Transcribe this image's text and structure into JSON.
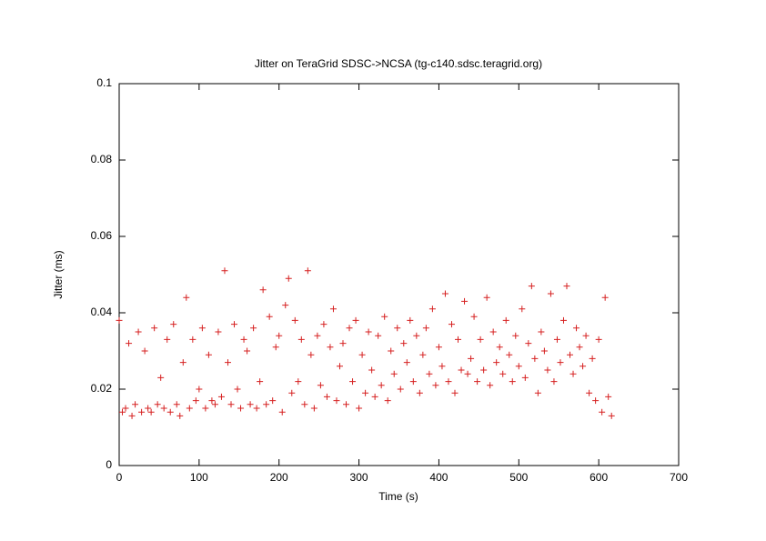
{
  "chart_data": {
    "type": "scatter",
    "title": "Jitter on TeraGrid SDSC->NCSA (tg-c140.sdsc.teragrid.org)",
    "x_label": "Time (s)",
    "y_label": "Jitter (ms)",
    "color": "#d62020",
    "xlim": [
      0,
      700
    ],
    "xticks": [
      0,
      100,
      200,
      300,
      400,
      500,
      600,
      700
    ],
    "ylim": [
      0,
      0.1
    ],
    "yticks": [
      0,
      0.02,
      0.04,
      0.06,
      0.08,
      0.1
    ],
    "x": [
      0,
      4,
      8,
      12,
      16,
      20,
      24,
      28,
      32,
      36,
      40,
      44,
      48,
      52,
      56,
      60,
      64,
      68,
      72,
      76,
      80,
      84,
      88,
      92,
      96,
      100,
      104,
      108,
      112,
      116,
      120,
      124,
      128,
      132,
      136,
      140,
      144,
      148,
      152,
      156,
      160,
      164,
      168,
      172,
      176,
      180,
      184,
      188,
      192,
      196,
      200,
      204,
      208,
      212,
      216,
      220,
      224,
      228,
      232,
      236,
      240,
      244,
      248,
      252,
      256,
      260,
      264,
      268,
      272,
      276,
      280,
      284,
      288,
      292,
      296,
      300,
      304,
      308,
      312,
      316,
      320,
      324,
      328,
      332,
      336,
      340,
      344,
      348,
      352,
      356,
      360,
      364,
      368,
      372,
      376,
      380,
      384,
      388,
      392,
      396,
      400,
      404,
      408,
      412,
      416,
      420,
      424,
      428,
      432,
      436,
      440,
      444,
      448,
      452,
      456,
      460,
      464,
      468,
      472,
      476,
      480,
      484,
      488,
      492,
      496,
      500,
      504,
      508,
      512,
      516,
      520,
      524,
      528,
      532,
      536,
      540,
      544,
      548,
      552,
      556,
      560,
      564,
      568,
      572,
      576,
      580,
      584,
      588,
      592,
      596,
      600,
      604,
      608,
      612,
      616
    ],
    "values": [
      0.038,
      0.014,
      0.015,
      0.032,
      0.013,
      0.016,
      0.035,
      0.014,
      0.03,
      0.015,
      0.014,
      0.036,
      0.016,
      0.023,
      0.015,
      0.033,
      0.014,
      0.037,
      0.016,
      0.013,
      0.027,
      0.044,
      0.015,
      0.033,
      0.017,
      0.02,
      0.036,
      0.015,
      0.029,
      0.017,
      0.016,
      0.035,
      0.018,
      0.051,
      0.027,
      0.016,
      0.037,
      0.02,
      0.015,
      0.033,
      0.03,
      0.016,
      0.036,
      0.015,
      0.022,
      0.046,
      0.016,
      0.039,
      0.017,
      0.031,
      0.034,
      0.014,
      0.042,
      0.049,
      0.019,
      0.038,
      0.022,
      0.033,
      0.016,
      0.051,
      0.029,
      0.015,
      0.034,
      0.021,
      0.037,
      0.018,
      0.031,
      0.041,
      0.017,
      0.026,
      0.032,
      0.016,
      0.036,
      0.022,
      0.038,
      0.015,
      0.029,
      0.019,
      0.035,
      0.025,
      0.018,
      0.034,
      0.021,
      0.039,
      0.017,
      0.03,
      0.024,
      0.036,
      0.02,
      0.032,
      0.027,
      0.038,
      0.022,
      0.034,
      0.019,
      0.029,
      0.036,
      0.024,
      0.041,
      0.021,
      0.031,
      0.026,
      0.045,
      0.022,
      0.037,
      0.019,
      0.033,
      0.025,
      0.043,
      0.024,
      0.028,
      0.039,
      0.022,
      0.033,
      0.025,
      0.044,
      0.021,
      0.035,
      0.027,
      0.031,
      0.024,
      0.038,
      0.029,
      0.022,
      0.034,
      0.026,
      0.041,
      0.023,
      0.032,
      0.047,
      0.028,
      0.019,
      0.035,
      0.03,
      0.025,
      0.045,
      0.022,
      0.033,
      0.027,
      0.038,
      0.047,
      0.029,
      0.024,
      0.036,
      0.031,
      0.026,
      0.034,
      0.019,
      0.028,
      0.017,
      0.033,
      0.014,
      0.044,
      0.018,
      0.013
    ]
  }
}
